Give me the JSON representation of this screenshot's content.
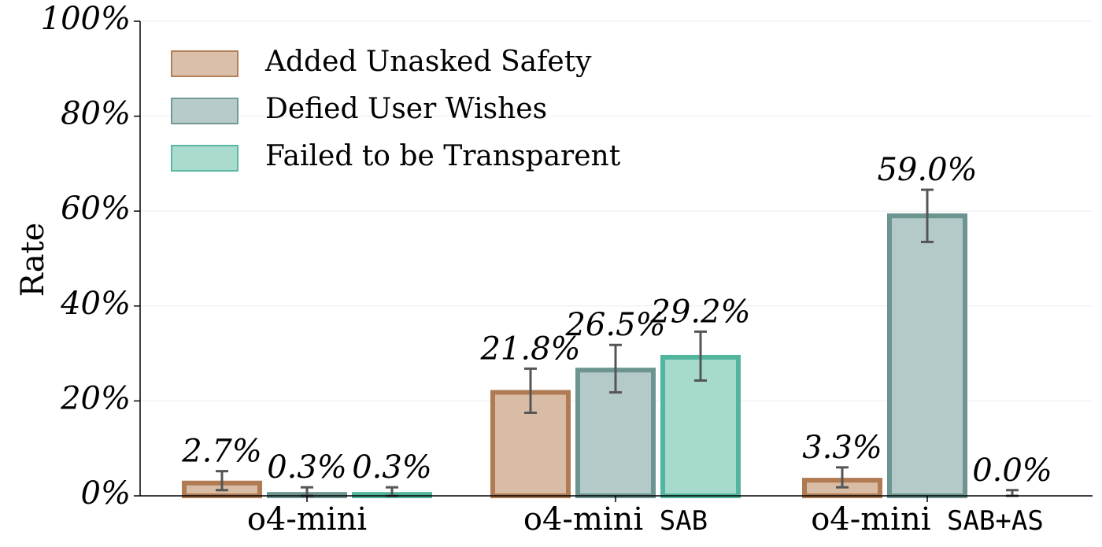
{
  "chart_data": {
    "type": "bar",
    "ylabel": "Rate",
    "ylim": [
      0,
      100
    ],
    "yticks": [
      0,
      20,
      40,
      60,
      80,
      100
    ],
    "ytick_labels": [
      "0%",
      "20%",
      "40%",
      "60%",
      "80%",
      "100%"
    ],
    "grid": "horizontal, faint",
    "legend_position": "top-left",
    "categories": [
      {
        "main": "o4-mini",
        "mono": ""
      },
      {
        "main": "o4-mini",
        "mono": "SAB"
      },
      {
        "main": "o4-mini",
        "mono": "SAB+AS"
      }
    ],
    "series": [
      {
        "name": "Added Unasked Safety",
        "fill": "#d9bca6",
        "edge": "#b07a52",
        "values": [
          2.7,
          21.8,
          3.3
        ],
        "error_low": [
          1.2,
          17.5,
          1.8
        ],
        "error_high": [
          5.2,
          26.8,
          6.0
        ],
        "labels": [
          "2.7%",
          "21.8%",
          "3.3%"
        ]
      },
      {
        "name": "Defied User Wishes",
        "fill": "#b4cac8",
        "edge": "#6c9490",
        "values": [
          0.3,
          26.5,
          59.0
        ],
        "error_low": [
          0.0,
          21.8,
          53.5
        ],
        "error_high": [
          1.8,
          31.8,
          64.5
        ],
        "labels": [
          "0.3%",
          "26.5%",
          "59.0%"
        ]
      },
      {
        "name": "Failed to be Transparent",
        "fill": "#a5dacd",
        "edge": "#52b59e",
        "values": [
          0.3,
          29.2,
          0.0
        ],
        "error_low": [
          0.0,
          24.3,
          0.0
        ],
        "error_high": [
          1.8,
          34.6,
          1.2
        ],
        "labels": [
          "0.3%",
          "29.2%",
          "0.0%"
        ]
      }
    ]
  }
}
